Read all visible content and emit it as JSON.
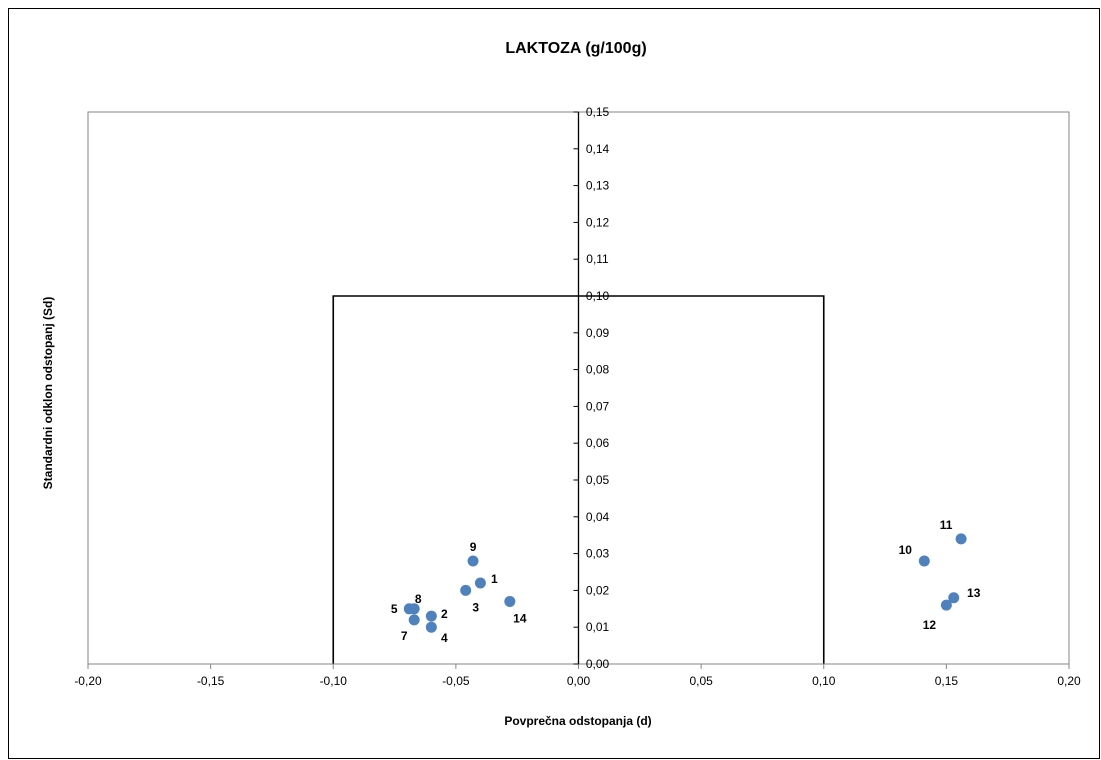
{
  "chart_data": {
    "type": "scatter",
    "title": "LAKTOZA (g/100g)",
    "xlabel": "Povprečna odstopanja (d)",
    "ylabel": "Standardni odklon odstopanj (Sd)",
    "xlim": [
      -0.2,
      0.2
    ],
    "ylim": [
      0.0,
      0.15
    ],
    "x_ticks": [
      "-0,20",
      "-0,15",
      "-0,10",
      "-0,05",
      "0,00",
      "0,05",
      "0,10",
      "0,15",
      "0,20"
    ],
    "y_ticks": [
      "0,00",
      "0,01",
      "0,02",
      "0,03",
      "0,04",
      "0,05",
      "0,06",
      "0,07",
      "0,08",
      "0,09",
      "0,10",
      "0,11",
      "0,12",
      "0,13",
      "0,14",
      "0,15"
    ],
    "grid": false,
    "legend": "none",
    "marker_color": "#4F81BD",
    "acceptance_box": {
      "x": [
        -0.1,
        0.1
      ],
      "y_max": 0.1
    },
    "points": [
      {
        "label": "1",
        "x": -0.04,
        "y": 0.022
      },
      {
        "label": "2",
        "x": -0.06,
        "y": 0.013
      },
      {
        "label": "3",
        "x": -0.046,
        "y": 0.02
      },
      {
        "label": "4",
        "x": -0.06,
        "y": 0.01
      },
      {
        "label": "5",
        "x": -0.069,
        "y": 0.015
      },
      {
        "label": "7",
        "x": -0.067,
        "y": 0.012
      },
      {
        "label": "8",
        "x": -0.067,
        "y": 0.015
      },
      {
        "label": "9",
        "x": -0.043,
        "y": 0.028
      },
      {
        "label": "10",
        "x": 0.141,
        "y": 0.028
      },
      {
        "label": "11",
        "x": 0.156,
        "y": 0.034
      },
      {
        "label": "12",
        "x": 0.15,
        "y": 0.016
      },
      {
        "label": "13",
        "x": 0.153,
        "y": 0.018
      },
      {
        "label": "14",
        "x": -0.028,
        "y": 0.017
      }
    ]
  }
}
